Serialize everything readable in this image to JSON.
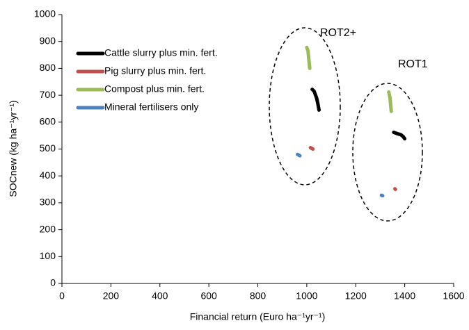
{
  "chart_data": {
    "type": "line",
    "x_label": "Financial return (Euro ha⁻¹yr⁻¹)",
    "y_label": "SOCnew (kg ha⁻¹yr⁻¹)",
    "annotations": [
      "ROT2+",
      "ROT1"
    ],
    "xlim": [
      0,
      1600
    ],
    "xticks": [
      0,
      200,
      400,
      600,
      800,
      1000,
      1200,
      1400,
      1600
    ],
    "ylim": [
      0,
      1000
    ],
    "yticks": [
      0,
      100,
      200,
      300,
      400,
      500,
      600,
      700,
      800,
      900,
      1000
    ],
    "grid": false,
    "legend": "upper left",
    "series": [
      {
        "name": "Cattle slurry plus min. fert.",
        "color": "#000000",
        "x": [
          1022,
          1030,
          1040,
          1045,
          1050,
          null,
          1355,
          1370,
          1385,
          1395,
          1400
        ],
        "values": [
          722,
          715,
          690,
          670,
          645,
          null,
          562,
          557,
          553,
          545,
          538
        ]
      },
      {
        "name": "Pig slurry plus min. fert.",
        "color": "#c0504d",
        "x": [
          1015,
          1025,
          null,
          1360,
          1362
        ],
        "values": [
          505,
          500,
          null,
          352,
          350
        ]
      },
      {
        "name": "Compost plus min. fert.",
        "color": "#9bbb59",
        "x": [
          1000,
          1005,
          1012,
          null,
          1335,
          1340,
          1345
        ],
        "values": [
          878,
          865,
          800,
          null,
          712,
          690,
          640
        ]
      },
      {
        "name": "Mineral fertilisers only",
        "color": "#4f81bd",
        "x": [
          962,
          972,
          null,
          1305,
          1310
        ],
        "values": [
          480,
          475,
          null,
          328,
          326
        ]
      }
    ]
  }
}
